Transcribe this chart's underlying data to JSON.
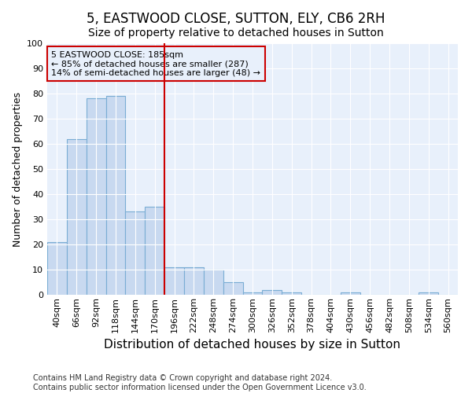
{
  "title": "5, EASTWOOD CLOSE, SUTTON, ELY, CB6 2RH",
  "subtitle": "Size of property relative to detached houses in Sutton",
  "xlabel": "Distribution of detached houses by size in Sutton",
  "ylabel": "Number of detached properties",
  "categories": [
    "40sqm",
    "66sqm",
    "92sqm",
    "118sqm",
    "144sqm",
    "170sqm",
    "196sqm",
    "222sqm",
    "248sqm",
    "274sqm",
    "300sqm",
    "326sqm",
    "352sqm",
    "378sqm",
    "404sqm",
    "430sqm",
    "456sqm",
    "482sqm",
    "508sqm",
    "534sqm",
    "560sqm"
  ],
  "values": [
    21,
    62,
    78,
    79,
    33,
    35,
    11,
    11,
    10,
    5,
    1,
    2,
    1,
    0,
    0,
    1,
    0,
    0,
    0,
    1,
    0
  ],
  "bar_color": "#c8d9f0",
  "bar_edge_color": "#7aadd4",
  "background_color": "#ffffff",
  "plot_bg_color": "#e8f0fb",
  "grid_color": "#ffffff",
  "vline_color": "#cc0000",
  "vline_x_index": 5,
  "annotation_text": "5 EASTWOOD CLOSE: 185sqm\n← 85% of detached houses are smaller (287)\n14% of semi-detached houses are larger (48) →",
  "annotation_box_color": "#cc0000",
  "ylim": [
    0,
    100
  ],
  "yticks": [
    0,
    10,
    20,
    30,
    40,
    50,
    60,
    70,
    80,
    90,
    100
  ],
  "footer_line1": "Contains HM Land Registry data © Crown copyright and database right 2024.",
  "footer_line2": "Contains public sector information licensed under the Open Government Licence v3.0.",
  "title_fontsize": 12,
  "subtitle_fontsize": 10,
  "xlabel_fontsize": 11,
  "ylabel_fontsize": 9,
  "tick_fontsize": 8,
  "annot_fontsize": 8,
  "footer_fontsize": 7
}
